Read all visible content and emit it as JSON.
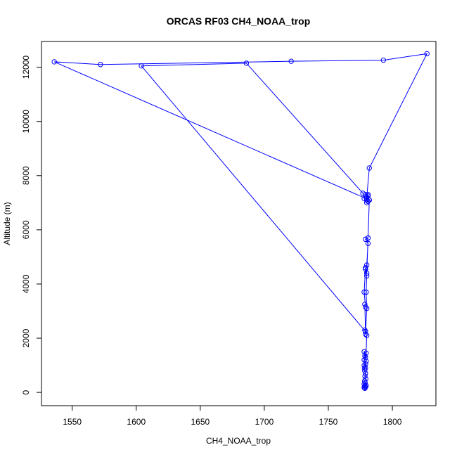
{
  "chart_data": {
    "type": "line",
    "title": "ORCAS RF03 CH4_NOAA_trop",
    "xlabel": "CH4_NOAA_trop",
    "ylabel": "Altitude (m)",
    "xlim": [
      1526,
      1834
    ],
    "ylim": [
      -490,
      12950
    ],
    "xticks": [
      1550,
      1600,
      1650,
      1700,
      1750,
      1800
    ],
    "yticks": [
      0,
      2000,
      4000,
      6000,
      8000,
      10000,
      12000
    ],
    "grid": false,
    "legend": "none",
    "series": [
      {
        "color": "#0000ff",
        "marker": "open-circle",
        "x": [
          1778.5,
          1778.0,
          1779.0,
          1778.5,
          1779.5,
          1778.0,
          1778.8,
          1778.3,
          1779.2,
          1778.6,
          1779.0,
          1778.4,
          1778.2,
          1779.1,
          1778.0,
          1778.5,
          1779.5,
          1778.0,
          1779.0,
          1779.5,
          1778.0,
          1779.0,
          1780.0,
          1778.5,
          1779.0,
          1780.0,
          1779.5,
          1780.0,
          1779.0,
          1780.0,
          1781.0,
          1779.0,
          1781.0,
          1782.0,
          1781.0,
          1780.0,
          1778.0,
          1777.0,
          1686.0,
          1604.0,
          1779.0,
          1778.5,
          1779.0,
          1778.0,
          1779.0,
          1780.0,
          1781.0,
          1782.0,
          1536.0,
          1572.0,
          1721.0,
          1793.0,
          1827.0,
          1782.0,
          1780.0,
          1781.0,
          1780.0,
          1781.0,
          1779.0
        ],
        "y": [
          150,
          180,
          200,
          230,
          250,
          300,
          350,
          420,
          500,
          600,
          700,
          800,
          900,
          1050,
          1200,
          1350,
          1450,
          1500,
          1300,
          1150,
          1000,
          900,
          2100,
          2300,
          2150,
          3100,
          3700,
          4300,
          4550,
          4700,
          5500,
          5650,
          5700,
          7100,
          7300,
          7000,
          7150,
          7350,
          12150,
          12050,
          2250,
          3250,
          3150,
          3700,
          4600,
          4400,
          5700,
          7100,
          12200,
          12100,
          12220,
          12260,
          12500,
          8280,
          7200,
          7250,
          7100,
          7050,
          7300
        ]
      }
    ]
  }
}
